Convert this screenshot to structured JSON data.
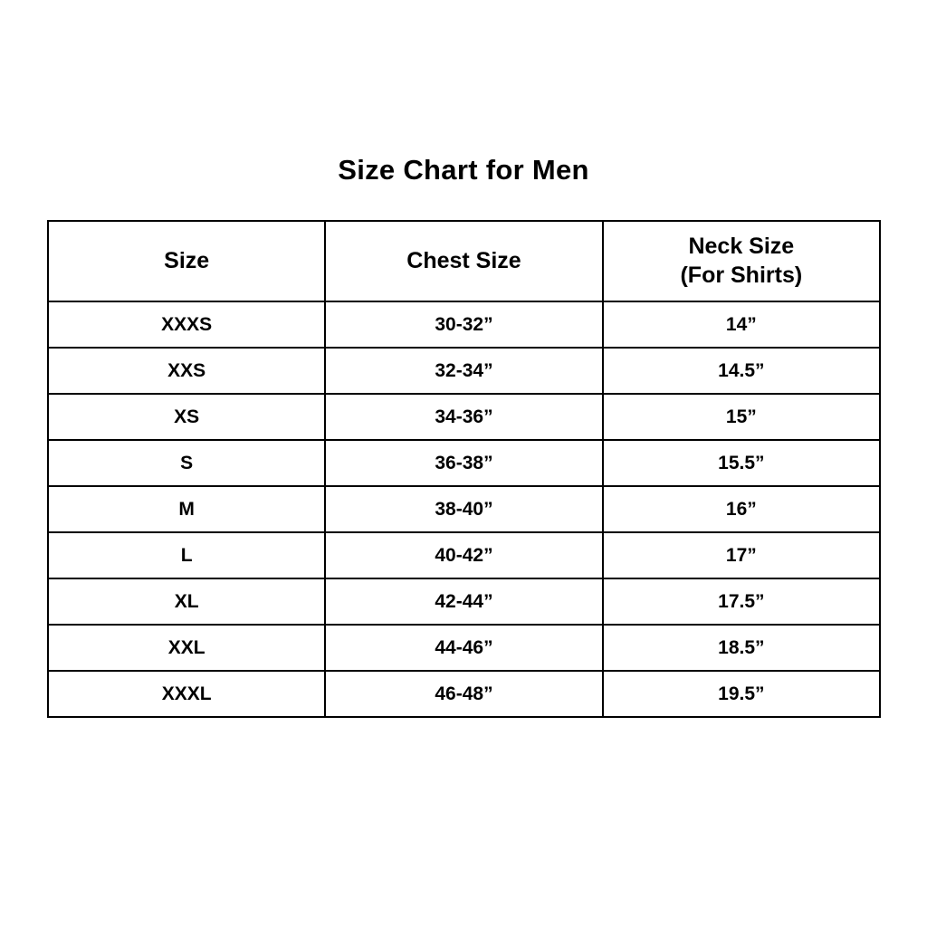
{
  "title": "Size Chart for Men",
  "table": {
    "header": {
      "size": "Size",
      "chest": "Chest Size",
      "neck_line1": "Neck Size",
      "neck_line2": "(For Shirts)"
    },
    "rows": [
      {
        "size": "XXXS",
        "chest": "30-32”",
        "neck": "14”"
      },
      {
        "size": "XXS",
        "chest": "32-34”",
        "neck": "14.5”"
      },
      {
        "size": "XS",
        "chest": "34-36”",
        "neck": "15”"
      },
      {
        "size": "S",
        "chest": "36-38”",
        "neck": "15.5”"
      },
      {
        "size": "M",
        "chest": "38-40”",
        "neck": "16”"
      },
      {
        "size": "L",
        "chest": "40-42”",
        "neck": "17”"
      },
      {
        "size": "XL",
        "chest": "42-44”",
        "neck": "17.5”"
      },
      {
        "size": "XXL",
        "chest": "44-46”",
        "neck": "18.5”"
      },
      {
        "size": "XXXL",
        "chest": "46-48”",
        "neck": "19.5”"
      }
    ]
  },
  "colors": {
    "background": "#ffffff",
    "border": "#000000",
    "text": "#000000"
  },
  "chart_data": {
    "type": "table",
    "title": "Size Chart for Men",
    "columns": [
      "Size",
      "Chest Size",
      "Neck Size (For Shirts)"
    ],
    "rows": [
      [
        "XXXS",
        "30-32”",
        "14”"
      ],
      [
        "XXS",
        "32-34”",
        "14.5”"
      ],
      [
        "XS",
        "34-36”",
        "15”"
      ],
      [
        "S",
        "36-38”",
        "15.5”"
      ],
      [
        "M",
        "38-40”",
        "16”"
      ],
      [
        "L",
        "40-42”",
        "17”"
      ],
      [
        "XL",
        "42-44”",
        "17.5”"
      ],
      [
        "XXL",
        "44-46”",
        "18.5”"
      ],
      [
        "XXXL",
        "46-48”",
        "19.5”"
      ]
    ]
  }
}
